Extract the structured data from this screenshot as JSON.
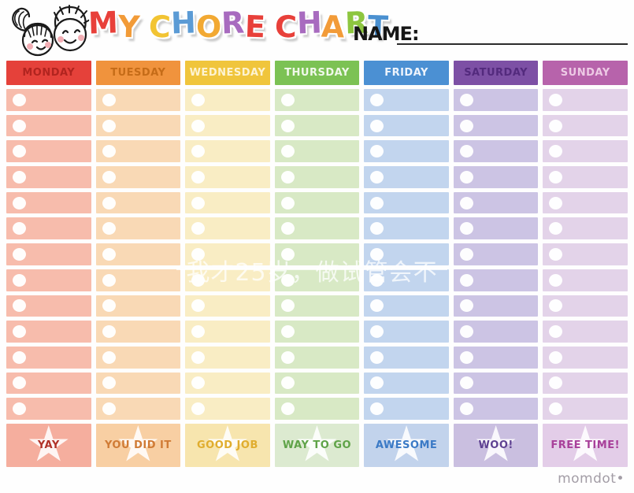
{
  "page": {
    "brand": "momdot",
    "brand_suffix": "•"
  },
  "header": {
    "name_label": "NAME:",
    "name_value": "",
    "title_letters": [
      {
        "char": "M",
        "color": "#e8403a"
      },
      {
        "char": "Y",
        "color": "#f29b38"
      },
      {
        "char": " ",
        "color": ""
      },
      {
        "char": "C",
        "color": "#f2c433"
      },
      {
        "char": "H",
        "color": "#5b9bd5"
      },
      {
        "char": "O",
        "color": "#f2a933"
      },
      {
        "char": "R",
        "color": "#a86bbf"
      },
      {
        "char": "E",
        "color": "#e8403a"
      },
      {
        "char": " ",
        "color": ""
      },
      {
        "char": "C",
        "color": "#e8403a"
      },
      {
        "char": "H",
        "color": "#a86bbf"
      },
      {
        "char": "A",
        "color": "#f29b38"
      },
      {
        "char": "R",
        "color": "#8dc63f"
      },
      {
        "char": "T",
        "color": "#4a90d0"
      }
    ]
  },
  "chart": {
    "row_count": 13,
    "columns": [
      {
        "day": "MONDAY",
        "header_bg": "#e5413a",
        "header_text": "#b1241f",
        "row_bg": "#f7bcac",
        "footer_bg": "#f5ae9e",
        "reward": "YAY",
        "reward_color": "#b03228"
      },
      {
        "day": "TUESDAY",
        "header_bg": "#f0933d",
        "header_text": "#c56c18",
        "row_bg": "#f9d9b5",
        "footer_bg": "#f8cfa3",
        "reward": "YOU DID IT",
        "reward_color": "#d07b35"
      },
      {
        "day": "WEDNESDAY",
        "header_bg": "#f0c53c",
        "header_text": "#fdf3d2",
        "row_bg": "#f9edc4",
        "footer_bg": "#f7e5ae",
        "reward": "GOOD JOB",
        "reward_color": "#e0ad2e"
      },
      {
        "day": "THURSDAY",
        "header_bg": "#7cc254",
        "header_text": "#f0f8ea",
        "row_bg": "#d8e9c5",
        "footer_bg": "#dcead0",
        "reward": "WAY TO GO",
        "reward_color": "#5fa348"
      },
      {
        "day": "FRIDAY",
        "header_bg": "#4b90d3",
        "header_text": "#eef4fc",
        "row_bg": "#c2d5ee",
        "footer_bg": "#c2d3ec",
        "reward": "AWESOME",
        "reward_color": "#3b7ac6"
      },
      {
        "day": "SATURDAY",
        "header_bg": "#7d50a5",
        "header_text": "#532a7d",
        "row_bg": "#ccc4e4",
        "footer_bg": "#cabfe0",
        "reward": "WOO!",
        "reward_color": "#5f4292"
      },
      {
        "day": "SUNDAY",
        "header_bg": "#b763ab",
        "header_text": "#edcae5",
        "row_bg": "#e3d3e9",
        "footer_bg": "#e3cde8",
        "reward": "FREE TIME!",
        "reward_color": "#a8409a"
      }
    ]
  },
  "watermark": {
    "text": "我才25岁，做试管会不"
  }
}
